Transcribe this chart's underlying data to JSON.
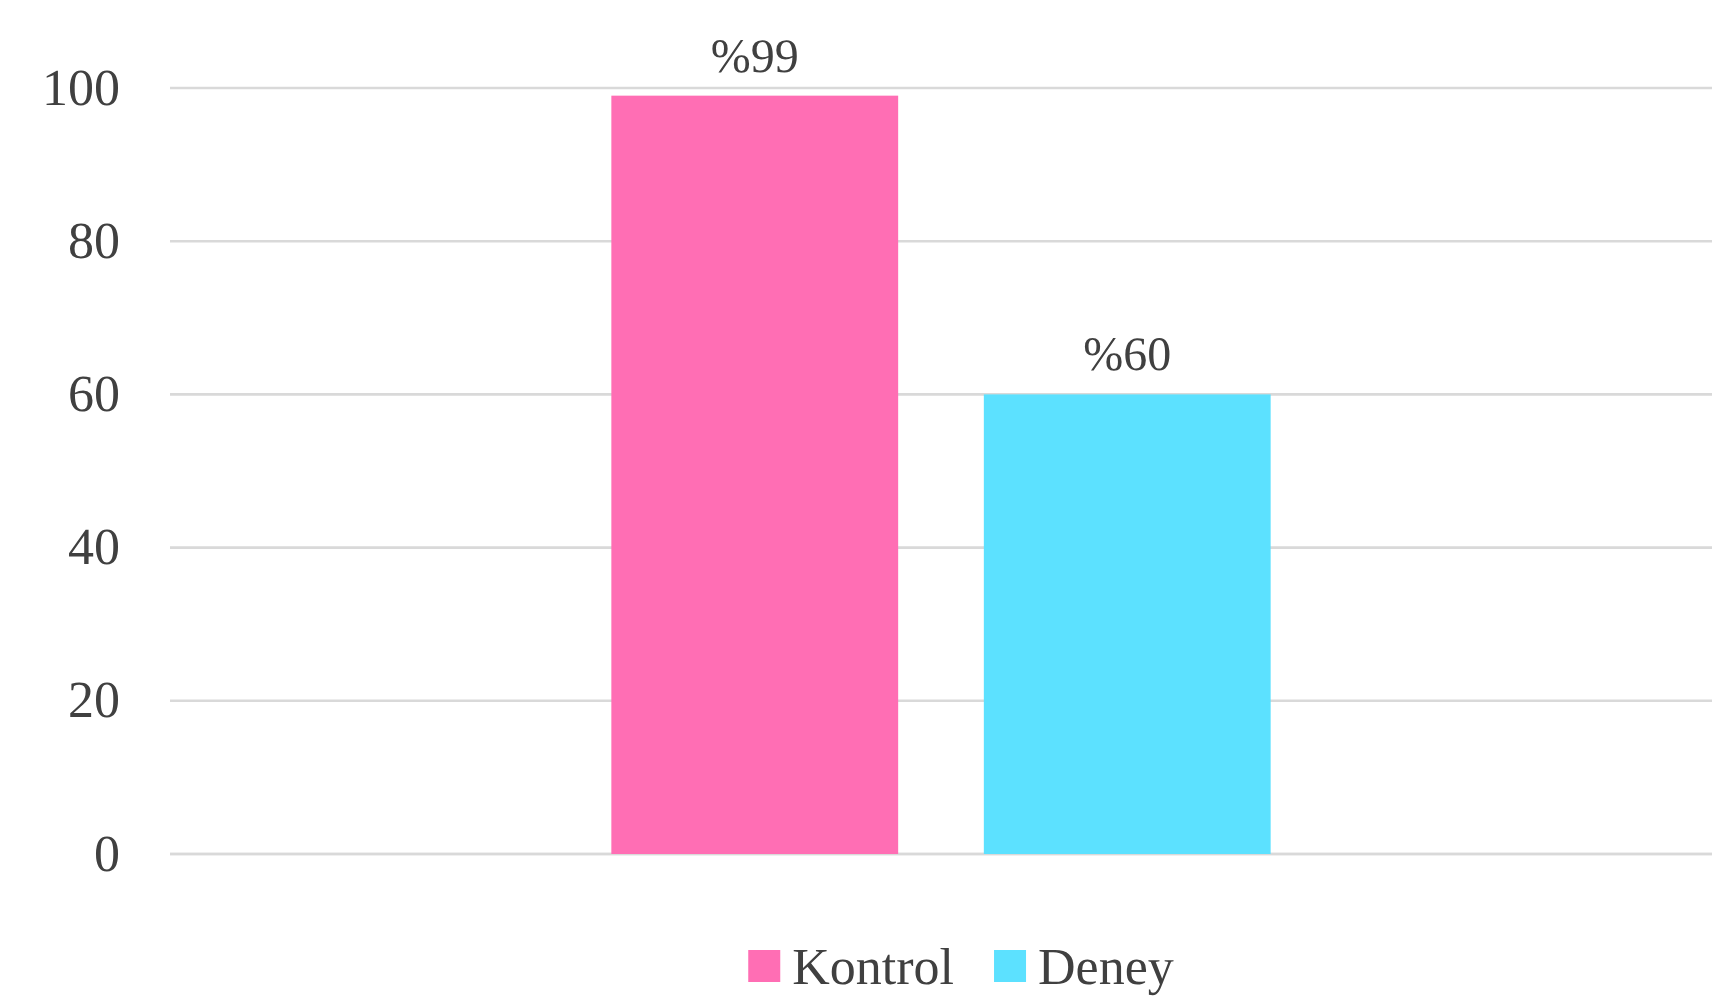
{
  "chart_data": {
    "type": "bar",
    "categories": [
      null
    ],
    "series": [
      {
        "name": "Kontrol",
        "color": "#ff6eb4",
        "values": [
          99
        ],
        "value_labels": [
          "%99"
        ]
      },
      {
        "name": "Deney",
        "color": "#5ce1ff",
        "values": [
          60
        ],
        "value_labels": [
          "%60"
        ]
      }
    ],
    "ylim": [
      0,
      100
    ],
    "yticks": [
      0,
      20,
      40,
      60,
      80,
      100
    ],
    "grid": "y",
    "legend": "bottom"
  }
}
